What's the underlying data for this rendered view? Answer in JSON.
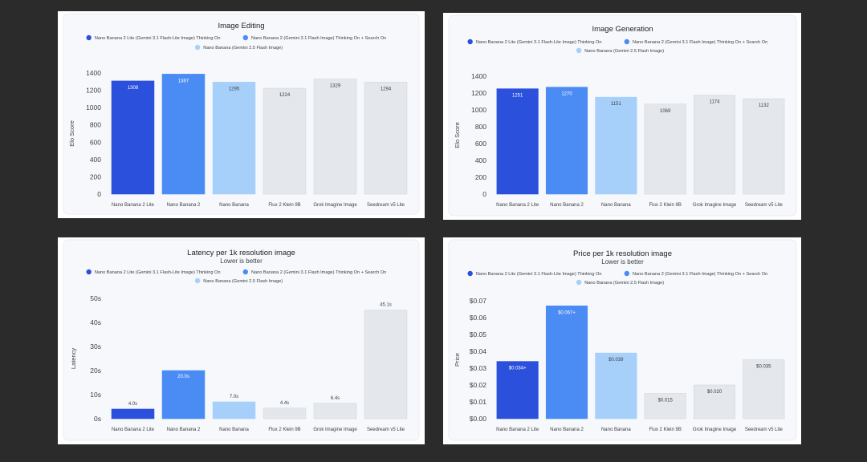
{
  "legend_labels": [
    "Nano Banana 2 Lite (Gemini 3.1 Flash-Lite Image) Thinking On",
    "Nano Banana 2 (Gemini 3.1 Flash Image) Thinking On + Search On",
    "Nano Banana (Gemini 2.5 Flash Image)"
  ],
  "colors": {
    "nb2lite": "#2a50dc",
    "nb2": "#4a8cf4",
    "nb": "#a6cffa",
    "other": "#e4e7eb",
    "background": "#2b2b2b",
    "card": "#f6f8fc"
  },
  "chart_data": [
    {
      "type": "bar",
      "title": "Image Editing",
      "subtitle": "",
      "ylabel": "Elo Score",
      "ylim": [
        0,
        1400
      ],
      "yticks": [
        "0",
        "200",
        "400",
        "600",
        "800",
        "1000",
        "1200",
        "1400"
      ],
      "categories": [
        "Nano Banana 2 Lite",
        "Nano Banana 2",
        "Nano Banana",
        "Flux 2 Klein 9B",
        "Grok Imagine Image",
        "Seedream v5 Lite"
      ],
      "values": [
        1308,
        1387,
        1295,
        1224,
        1329,
        1294
      ],
      "labels": [
        "1308",
        "1387",
        "1295",
        "1224",
        "1329",
        "1294"
      ],
      "colors": [
        "#2a50dc",
        "#4a8cf4",
        "#a6cffa",
        "#e4e7eb",
        "#e4e7eb",
        "#e4e7eb"
      ]
    },
    {
      "type": "bar",
      "title": "Image Generation",
      "subtitle": "",
      "ylabel": "Elo Score",
      "ylim": [
        0,
        1400
      ],
      "yticks": [
        "0",
        "200",
        "400",
        "600",
        "800",
        "1000",
        "1200",
        "1400"
      ],
      "categories": [
        "Nano Banana 2 Lite",
        "Nano Banana 2",
        "Nano Banana",
        "Flux 2 Klein 9B",
        "Grok Imagine Image",
        "Seedream v5 Lite"
      ],
      "values": [
        1251,
        1270,
        1151,
        1069,
        1174,
        1132
      ],
      "labels": [
        "1251",
        "1270",
        "1151",
        "1069",
        "1174",
        "1132"
      ],
      "colors": [
        "#2a50dc",
        "#4a8cf4",
        "#a6cffa",
        "#e4e7eb",
        "#e4e7eb",
        "#e4e7eb"
      ]
    },
    {
      "type": "bar",
      "title": "Latency per 1k resolution image",
      "subtitle": "Lower is better",
      "ylabel": "Latency",
      "ylim": [
        0,
        50
      ],
      "yticks": [
        "0s",
        "10s",
        "20s",
        "30s",
        "40s",
        "50s"
      ],
      "categories": [
        "Nano Banana 2 Lite",
        "Nano Banana 2",
        "Nano Banana",
        "Flux 2 Klein 9B",
        "Grok Imagine Image",
        "Seedream v5 Lite"
      ],
      "values": [
        4.0,
        20.0,
        7.0,
        4.4,
        6.4,
        45.1
      ],
      "labels": [
        "4.0s",
        "20.0s",
        "7.0s",
        "4.4s",
        "6.4s",
        "45.1s"
      ],
      "colors": [
        "#2a50dc",
        "#4a8cf4",
        "#a6cffa",
        "#e4e7eb",
        "#e4e7eb",
        "#e4e7eb"
      ]
    },
    {
      "type": "bar",
      "title": "Price per 1k resolution image",
      "subtitle": "Lower is better",
      "ylabel": "Price",
      "ylim": [
        0,
        0.07
      ],
      "yticks": [
        "$0.00",
        "$0.01",
        "$0.02",
        "$0.03",
        "$0.04",
        "$0.05",
        "$0.06",
        "$0.07"
      ],
      "categories": [
        "Nano Banana 2 Lite",
        "Nano Banana 2",
        "Nano Banana",
        "Flux 2 Klein 9B",
        "Grok Imagine Image",
        "Seedream v5 Lite"
      ],
      "values": [
        0.034,
        0.067,
        0.039,
        0.015,
        0.02,
        0.035
      ],
      "labels": [
        "$0.034+",
        "$0.067+",
        "$0.039",
        "$0.015",
        "$0.020",
        "$0.035"
      ],
      "colors": [
        "#2a50dc",
        "#4a8cf4",
        "#a6cffa",
        "#e4e7eb",
        "#e4e7eb",
        "#e4e7eb"
      ]
    }
  ]
}
